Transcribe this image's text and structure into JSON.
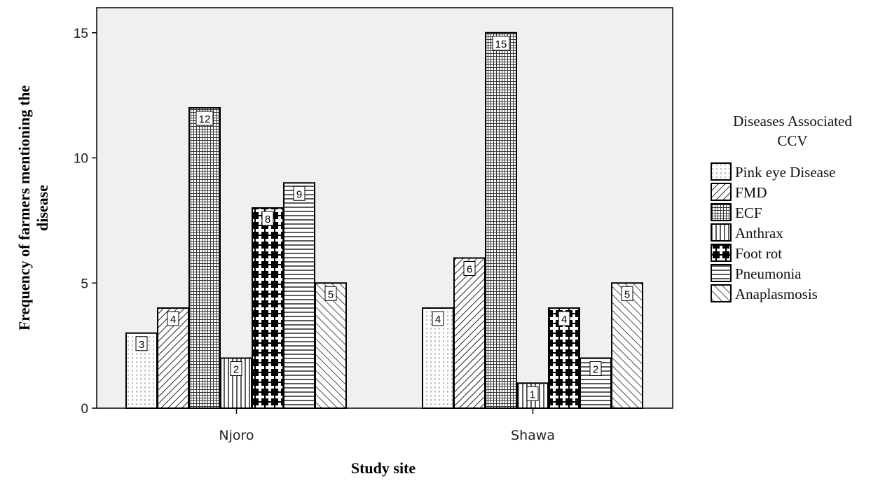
{
  "chart_data": {
    "type": "bar",
    "categories": [
      "Njoro",
      "Shawa"
    ],
    "series": [
      {
        "name": "Pink eye Disease",
        "values": [
          3,
          4
        ],
        "pattern": "dots"
      },
      {
        "name": "FMD",
        "values": [
          4,
          6
        ],
        "pattern": "diag"
      },
      {
        "name": "ECF",
        "values": [
          12,
          15
        ],
        "pattern": "grid"
      },
      {
        "name": "Anthrax",
        "values": [
          2,
          1
        ],
        "pattern": "vlines"
      },
      {
        "name": "Foot rot",
        "values": [
          8,
          4
        ],
        "pattern": "crosses"
      },
      {
        "name": "Pneumonia",
        "values": [
          9,
          2
        ],
        "pattern": "hlines"
      },
      {
        "name": "Anaplasmosis",
        "values": [
          5,
          5
        ],
        "pattern": "backdiag"
      }
    ],
    "xlabel": "Study site",
    "ylabel": [
      "Frequency of farmers mentioning the",
      "disease"
    ],
    "ylim": [
      0,
      16
    ],
    "yticks": [
      0,
      5,
      10,
      15
    ],
    "legend_title": [
      "Diseases Associated",
      "CCV"
    ],
    "legend_position": "right",
    "grid": false,
    "plot_background": "#f0f0f0"
  }
}
